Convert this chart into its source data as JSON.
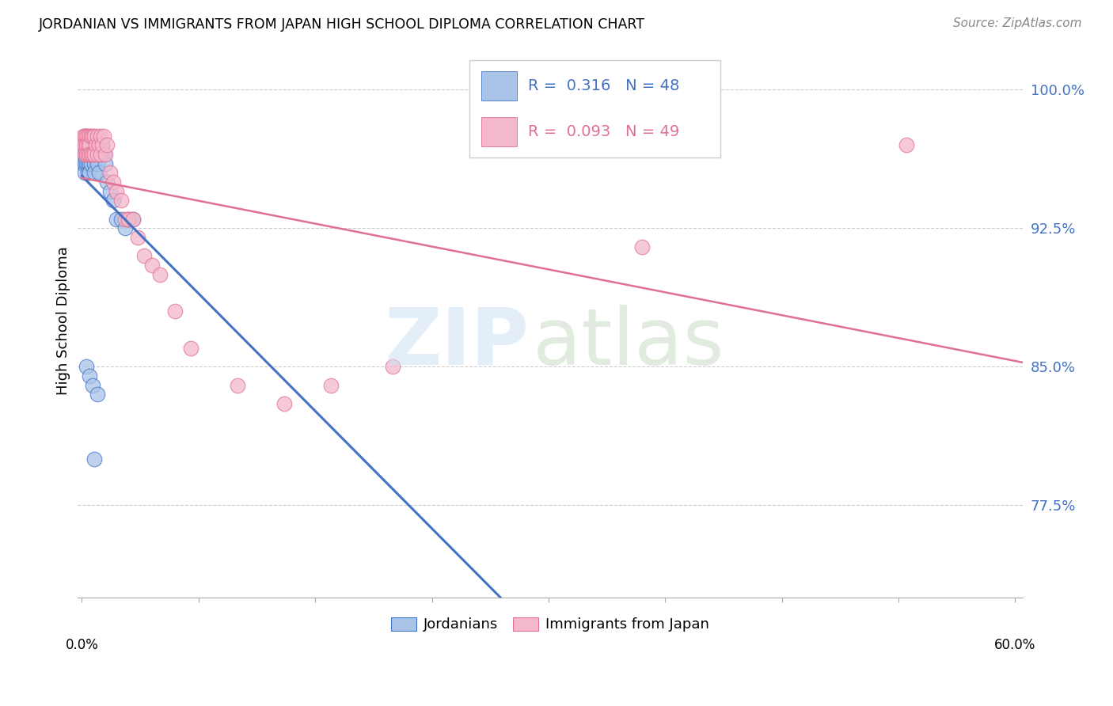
{
  "title": "JORDANIAN VS IMMIGRANTS FROM JAPAN HIGH SCHOOL DIPLOMA CORRELATION CHART",
  "source": "Source: ZipAtlas.com",
  "ylabel": "High School Diploma",
  "ytick_values": [
    0.775,
    0.85,
    0.925,
    1.0
  ],
  "xlim": [
    -0.003,
    0.605
  ],
  "ylim": [
    0.725,
    1.025
  ],
  "color_blue": "#aac4e8",
  "color_pink": "#f4b8cc",
  "line_blue": "#4472c4",
  "line_pink": "#e07090",
  "watermark_zip": "ZIP",
  "watermark_atlas": "atlas",
  "legend_text_1": "R =  0.316   N = 48",
  "legend_text_2": "R =  0.093   N = 49",
  "jordanians_x": [
    0.001,
    0.001,
    0.001,
    0.002,
    0.002,
    0.002,
    0.002,
    0.002,
    0.003,
    0.003,
    0.003,
    0.003,
    0.004,
    0.004,
    0.004,
    0.004,
    0.005,
    0.005,
    0.005,
    0.005,
    0.006,
    0.006,
    0.006,
    0.007,
    0.007,
    0.008,
    0.008,
    0.009,
    0.01,
    0.01,
    0.011,
    0.012,
    0.013,
    0.014,
    0.015,
    0.016,
    0.018,
    0.02,
    0.022,
    0.025,
    0.028,
    0.03,
    0.033,
    0.003,
    0.005,
    0.007,
    0.01,
    0.008
  ],
  "jordanians_y": [
    0.97,
    0.965,
    0.96,
    0.975,
    0.97,
    0.965,
    0.96,
    0.955,
    0.975,
    0.97,
    0.965,
    0.96,
    0.97,
    0.965,
    0.96,
    0.955,
    0.97,
    0.965,
    0.96,
    0.955,
    0.97,
    0.965,
    0.96,
    0.97,
    0.965,
    0.96,
    0.955,
    0.97,
    0.965,
    0.96,
    0.955,
    0.965,
    0.97,
    0.965,
    0.96,
    0.95,
    0.945,
    0.94,
    0.93,
    0.93,
    0.925,
    0.93,
    0.93,
    0.85,
    0.845,
    0.84,
    0.835,
    0.8
  ],
  "japan_x": [
    0.001,
    0.001,
    0.002,
    0.002,
    0.002,
    0.003,
    0.003,
    0.003,
    0.004,
    0.004,
    0.004,
    0.005,
    0.005,
    0.005,
    0.006,
    0.006,
    0.007,
    0.007,
    0.008,
    0.008,
    0.009,
    0.01,
    0.01,
    0.011,
    0.012,
    0.012,
    0.013,
    0.014,
    0.015,
    0.016,
    0.018,
    0.02,
    0.022,
    0.025,
    0.028,
    0.03,
    0.033,
    0.036,
    0.04,
    0.045,
    0.05,
    0.06,
    0.07,
    0.1,
    0.13,
    0.16,
    0.2,
    0.36,
    0.53
  ],
  "japan_y": [
    0.975,
    0.97,
    0.975,
    0.97,
    0.965,
    0.975,
    0.97,
    0.965,
    0.975,
    0.97,
    0.965,
    0.975,
    0.97,
    0.965,
    0.975,
    0.965,
    0.975,
    0.965,
    0.975,
    0.965,
    0.97,
    0.975,
    0.965,
    0.97,
    0.975,
    0.965,
    0.97,
    0.975,
    0.965,
    0.97,
    0.955,
    0.95,
    0.945,
    0.94,
    0.93,
    0.93,
    0.93,
    0.92,
    0.91,
    0.905,
    0.9,
    0.88,
    0.86,
    0.84,
    0.83,
    0.84,
    0.85,
    0.915,
    0.97
  ],
  "blue_line_x": [
    0.0,
    0.335
  ],
  "pink_line_x": [
    0.0,
    0.605
  ]
}
